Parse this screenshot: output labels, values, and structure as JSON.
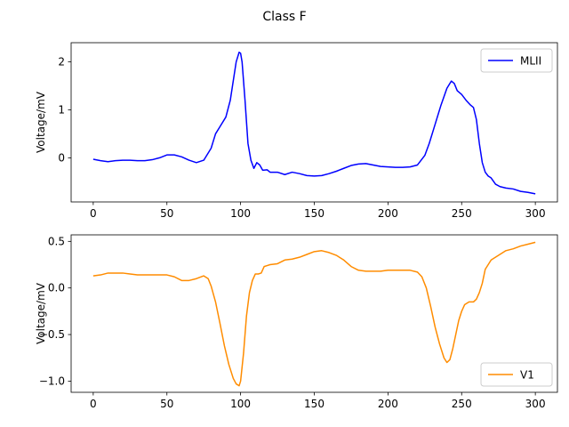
{
  "chart_data": {
    "type": "line",
    "title": "Class F",
    "panels": [
      {
        "ylabel": "Voltage/mV",
        "xlim": [
          -15,
          315
        ],
        "ylim": [
          -0.92,
          2.4
        ],
        "xticks": [
          0,
          50,
          100,
          150,
          200,
          250,
          300
        ],
        "yticks": [
          0,
          1,
          2
        ],
        "grid": false,
        "legend": "top-right",
        "series": [
          {
            "name": "MLII",
            "color": "#0000ff",
            "x": [
              0,
              5,
              10,
              15,
              20,
              25,
              30,
              35,
              40,
              45,
              50,
              55,
              60,
              65,
              70,
              75,
              80,
              83,
              86,
              90,
              93,
              95,
              97,
              99,
              100,
              101,
              103,
              105,
              107,
              109,
              111,
              113,
              115,
              118,
              120,
              125,
              130,
              135,
              140,
              145,
              150,
              155,
              160,
              165,
              170,
              175,
              180,
              185,
              190,
              195,
              200,
              205,
              210,
              215,
              220,
              225,
              228,
              232,
              236,
              240,
              243,
              245,
              247,
              250,
              253,
              256,
              258,
              260,
              262,
              264,
              266,
              268,
              270,
              273,
              276,
              280,
              285,
              290,
              295,
              300
            ],
            "y": [
              -0.03,
              -0.06,
              -0.08,
              -0.06,
              -0.05,
              -0.05,
              -0.06,
              -0.06,
              -0.04,
              0.0,
              0.06,
              0.06,
              0.02,
              -0.05,
              -0.1,
              -0.05,
              0.2,
              0.5,
              0.65,
              0.85,
              1.2,
              1.6,
              2.0,
              2.2,
              2.18,
              2.0,
              1.2,
              0.3,
              -0.05,
              -0.22,
              -0.1,
              -0.15,
              -0.26,
              -0.25,
              -0.3,
              -0.3,
              -0.35,
              -0.3,
              -0.33,
              -0.37,
              -0.38,
              -0.37,
              -0.33,
              -0.28,
              -0.22,
              -0.16,
              -0.13,
              -0.12,
              -0.15,
              -0.18,
              -0.19,
              -0.2,
              -0.2,
              -0.19,
              -0.15,
              0.05,
              0.3,
              0.7,
              1.1,
              1.45,
              1.6,
              1.55,
              1.4,
              1.32,
              1.2,
              1.1,
              1.05,
              0.8,
              0.3,
              -0.1,
              -0.3,
              -0.38,
              -0.42,
              -0.55,
              -0.6,
              -0.63,
              -0.65,
              -0.7,
              -0.72,
              -0.75
            ]
          }
        ]
      },
      {
        "ylabel": "Voltage/mV",
        "xlim": [
          -15,
          315
        ],
        "ylim": [
          -1.12,
          0.57
        ],
        "xticks": [
          0,
          50,
          100,
          150,
          200,
          250,
          300
        ],
        "yticks": [
          -1.0,
          -0.5,
          0.0,
          0.5
        ],
        "grid": false,
        "legend": "bottom-right",
        "series": [
          {
            "name": "V1",
            "color": "#ff8c00",
            "x": [
              0,
              5,
              10,
              15,
              20,
              25,
              30,
              35,
              40,
              45,
              50,
              55,
              60,
              65,
              70,
              75,
              78,
              80,
              83,
              86,
              89,
              92,
              95,
              97,
              99,
              100,
              102,
              104,
              106,
              108,
              110,
              112,
              114,
              116,
              118,
              120,
              125,
              130,
              135,
              140,
              145,
              150,
              155,
              160,
              165,
              170,
              175,
              180,
              185,
              190,
              195,
              200,
              205,
              210,
              215,
              220,
              223,
              226,
              229,
              232,
              235,
              238,
              240,
              242,
              244,
              246,
              248,
              250,
              252,
              255,
              258,
              260,
              262,
              264,
              266,
              268,
              270,
              275,
              280,
              285,
              290,
              295,
              300
            ],
            "y": [
              0.13,
              0.14,
              0.16,
              0.16,
              0.16,
              0.15,
              0.14,
              0.14,
              0.14,
              0.14,
              0.14,
              0.12,
              0.08,
              0.08,
              0.1,
              0.13,
              0.1,
              0.02,
              -0.15,
              -0.38,
              -0.62,
              -0.82,
              -0.97,
              -1.03,
              -1.05,
              -1.0,
              -0.7,
              -0.3,
              -0.05,
              0.08,
              0.15,
              0.15,
              0.16,
              0.23,
              0.24,
              0.25,
              0.26,
              0.3,
              0.31,
              0.33,
              0.36,
              0.39,
              0.4,
              0.38,
              0.35,
              0.3,
              0.23,
              0.19,
              0.18,
              0.18,
              0.18,
              0.19,
              0.19,
              0.19,
              0.19,
              0.17,
              0.12,
              0.0,
              -0.2,
              -0.42,
              -0.6,
              -0.75,
              -0.8,
              -0.77,
              -0.65,
              -0.5,
              -0.35,
              -0.25,
              -0.18,
              -0.15,
              -0.15,
              -0.12,
              -0.05,
              0.05,
              0.2,
              0.25,
              0.3,
              0.35,
              0.4,
              0.42,
              0.45,
              0.47,
              0.49
            ]
          }
        ]
      }
    ]
  }
}
